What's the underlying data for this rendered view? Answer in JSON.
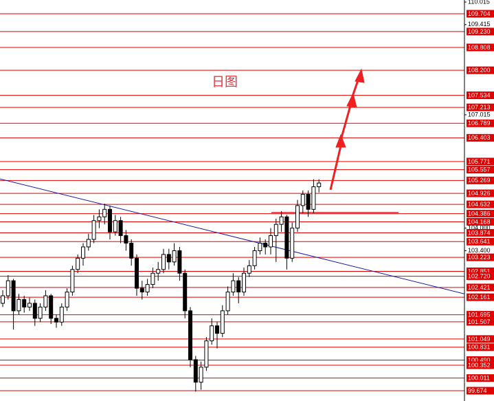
{
  "chart_data": {
    "type": "candlestick",
    "title": "日图",
    "title_color": "#e8383d",
    "ylim": [
      99.4,
      110.07
    ],
    "yticks": [
      110.015,
      109.415,
      107.015,
      {
        "value": 104.0,
        "label": "104.000"
      },
      {
        "value": 103.4,
        "label": "103.400"
      }
    ],
    "levels": [
      109.704,
      {
        "value": 109.23,
        "label": "109.230"
      },
      108.808,
      {
        "value": 108.2,
        "label": "108.200"
      },
      107.534,
      107.213,
      106.789,
      106.403,
      105.771,
      105.557,
      105.269,
      104.926,
      104.632,
      104.386,
      104.168,
      103.874,
      103.641,
      103.223,
      102.851,
      {
        "value": 102.72,
        "label": "102.720"
      },
      102.421,
      102.161,
      101.695,
      101.507,
      101.049,
      100.831,
      {
        "value": 100.49,
        "label": "100.490"
      },
      100.352,
      100.011,
      99.674
    ],
    "level_color": "#e00000",
    "trendline": {
      "color": "#1a1aaa",
      "values": [
        105.31,
        102.25
      ]
    },
    "support": {
      "color": "#e8383d",
      "value": 104.4
    },
    "ohlc": [
      [
        102.0,
        102.35,
        101.9,
        102.2
      ],
      [
        102.2,
        102.75,
        102.1,
        102.6
      ],
      [
        102.6,
        102.65,
        101.3,
        101.8
      ],
      [
        101.8,
        102.25,
        101.7,
        102.1
      ],
      [
        102.1,
        102.2,
        101.75,
        101.9
      ],
      [
        101.9,
        102.15,
        101.8,
        102.0
      ],
      [
        102.0,
        102.1,
        101.4,
        101.6
      ],
      [
        101.6,
        102.0,
        101.5,
        101.9
      ],
      [
        101.9,
        102.35,
        101.8,
        102.2
      ],
      [
        102.2,
        102.25,
        101.45,
        101.6
      ],
      [
        101.6,
        101.7,
        101.35,
        101.5
      ],
      [
        101.5,
        102.0,
        101.4,
        101.9
      ],
      [
        101.9,
        102.4,
        101.8,
        102.3
      ],
      [
        102.3,
        103.0,
        102.2,
        102.9
      ],
      [
        102.9,
        103.3,
        102.8,
        103.2
      ],
      [
        103.2,
        103.6,
        103.0,
        103.5
      ],
      [
        103.5,
        103.85,
        103.4,
        103.7
      ],
      [
        103.7,
        104.35,
        103.6,
        104.2
      ],
      [
        104.2,
        104.5,
        104.0,
        104.3
      ],
      [
        104.3,
        104.65,
        104.1,
        104.5
      ],
      [
        104.5,
        104.6,
        103.7,
        103.9
      ],
      [
        103.9,
        104.35,
        103.8,
        104.2
      ],
      [
        104.2,
        104.3,
        103.6,
        103.8
      ],
      [
        103.8,
        103.95,
        103.4,
        103.6
      ],
      [
        103.6,
        103.7,
        103.0,
        103.2
      ],
      [
        103.2,
        103.3,
        102.2,
        102.4
      ],
      [
        102.4,
        102.6,
        102.1,
        102.3
      ],
      [
        102.3,
        102.65,
        102.2,
        102.5
      ],
      [
        102.5,
        102.95,
        102.4,
        102.8
      ],
      [
        102.8,
        103.1,
        102.6,
        102.9
      ],
      [
        102.9,
        103.45,
        102.8,
        103.3
      ],
      [
        103.3,
        103.45,
        102.9,
        103.1
      ],
      [
        103.1,
        103.6,
        103.0,
        103.4
      ],
      [
        103.4,
        103.5,
        102.6,
        102.8
      ],
      [
        102.8,
        102.9,
        101.6,
        101.8
      ],
      [
        101.8,
        101.9,
        100.3,
        100.5
      ],
      [
        100.5,
        100.6,
        99.65,
        99.9
      ],
      [
        99.9,
        100.45,
        99.7,
        100.3
      ],
      [
        100.3,
        101.1,
        100.2,
        101.0
      ],
      [
        101.0,
        101.6,
        100.9,
        101.4
      ],
      [
        101.4,
        101.5,
        100.8,
        101.2
      ],
      [
        101.2,
        101.95,
        101.1,
        101.8
      ],
      [
        101.8,
        102.45,
        101.7,
        102.3
      ],
      [
        102.3,
        102.8,
        102.2,
        102.6
      ],
      [
        102.6,
        102.7,
        102.0,
        102.3
      ],
      [
        102.3,
        102.95,
        102.2,
        102.8
      ],
      [
        102.8,
        103.15,
        102.7,
        103.0
      ],
      [
        103.0,
        103.5,
        102.9,
        103.4
      ],
      [
        103.4,
        103.75,
        103.3,
        103.6
      ],
      [
        103.6,
        103.7,
        103.3,
        103.5
      ],
      [
        103.5,
        104.0,
        103.3,
        103.8
      ],
      [
        103.8,
        104.25,
        103.1,
        104.1
      ],
      [
        104.1,
        104.45,
        103.9,
        104.3
      ],
      [
        104.3,
        104.35,
        102.9,
        103.2
      ],
      [
        103.2,
        104.15,
        103.1,
        104.0
      ],
      [
        104.0,
        104.75,
        103.9,
        104.6
      ],
      [
        104.6,
        105.0,
        104.4,
        104.9
      ],
      [
        104.9,
        105.0,
        104.3,
        104.5
      ],
      [
        104.5,
        105.3,
        104.4,
        105.1
      ],
      [
        105.1,
        105.3,
        104.95,
        105.2
      ]
    ]
  }
}
